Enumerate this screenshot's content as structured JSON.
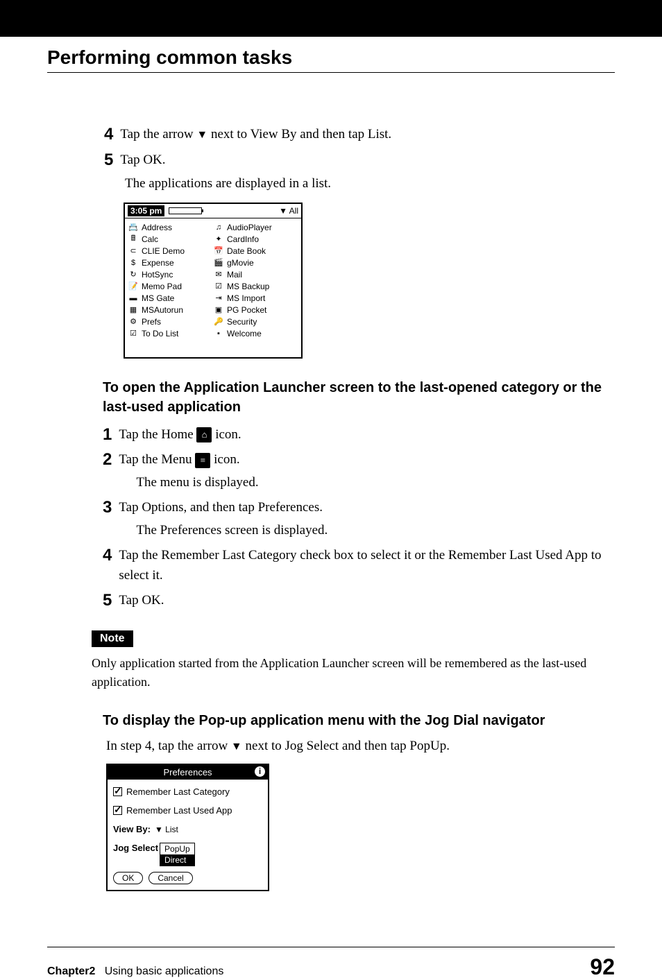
{
  "section_title": "Performing common tasks",
  "steps_a": [
    {
      "num": "4",
      "text_pre": "Tap the arrow ",
      "text_post": " next to View By and then tap List."
    },
    {
      "num": "5",
      "text_pre": "Tap OK.",
      "text_post": ""
    }
  ],
  "result_a": "The applications are displayed in a list.",
  "pda": {
    "time": "3:05 pm",
    "category": "▼ All",
    "left_apps": [
      {
        "icon": "📇",
        "name": "Address"
      },
      {
        "icon": "🖩",
        "name": "Calc"
      },
      {
        "icon": "⊂",
        "name": "CLIE Demo"
      },
      {
        "icon": "$",
        "name": "Expense"
      },
      {
        "icon": "↻",
        "name": "HotSync"
      },
      {
        "icon": "📝",
        "name": "Memo Pad"
      },
      {
        "icon": "▬",
        "name": "MS Gate"
      },
      {
        "icon": "▦",
        "name": "MSAutorun"
      },
      {
        "icon": "⚙",
        "name": "Prefs"
      },
      {
        "icon": "☑",
        "name": "To Do List"
      }
    ],
    "right_apps": [
      {
        "icon": "♫",
        "name": "AudioPlayer"
      },
      {
        "icon": "✦",
        "name": "CardInfo"
      },
      {
        "icon": "📅",
        "name": "Date Book"
      },
      {
        "icon": "🎬",
        "name": "gMovie"
      },
      {
        "icon": "✉",
        "name": "Mail"
      },
      {
        "icon": "☑",
        "name": "MS Backup"
      },
      {
        "icon": "⇥",
        "name": "MS Import"
      },
      {
        "icon": "▣",
        "name": "PG Pocket"
      },
      {
        "icon": "🔑",
        "name": "Security"
      },
      {
        "icon": "▪",
        "name": "Welcome"
      }
    ]
  },
  "subsection_1": "To open the Application Launcher screen to the last-opened category or the last-used application",
  "steps_b": [
    {
      "num": "1",
      "text_pre": "Tap the Home ",
      "icon": "home",
      "text_post": " icon."
    },
    {
      "num": "2",
      "text_pre": "Tap the Menu ",
      "icon": "menu",
      "text_post": " icon.",
      "result": "The menu is displayed."
    },
    {
      "num": "3",
      "text_pre": "Tap Options, and then tap Preferences.",
      "result": "The Preferences screen is displayed."
    },
    {
      "num": "4",
      "text_pre": "Tap the Remember Last Category check box to select it or the Remember Last Used App to select it."
    },
    {
      "num": "5",
      "text_pre": "Tap OK."
    }
  ],
  "note_label": "Note",
  "note_text": "Only application started from the Application Launcher screen will be remembered as the last-used application.",
  "subsection_2": "To display the Pop-up application menu with the Jog Dial navigator",
  "body_2": {
    "pre": "In step 4, tap the arrow ",
    "post": " next to Jog Select and then tap PopUp."
  },
  "prefs": {
    "title": "Preferences",
    "chk1": "Remember Last Category",
    "chk2": "Remember Last Used App",
    "viewby_label": "View By:",
    "viewby_value": "▼ List",
    "jog_label": "Jog Select",
    "options": [
      "PopUp",
      "Direct"
    ],
    "ok": "OK",
    "cancel": "Cancel"
  },
  "footer": {
    "chapter": "Chapter2",
    "chapter_text": "Using basic applications",
    "page": "92"
  }
}
